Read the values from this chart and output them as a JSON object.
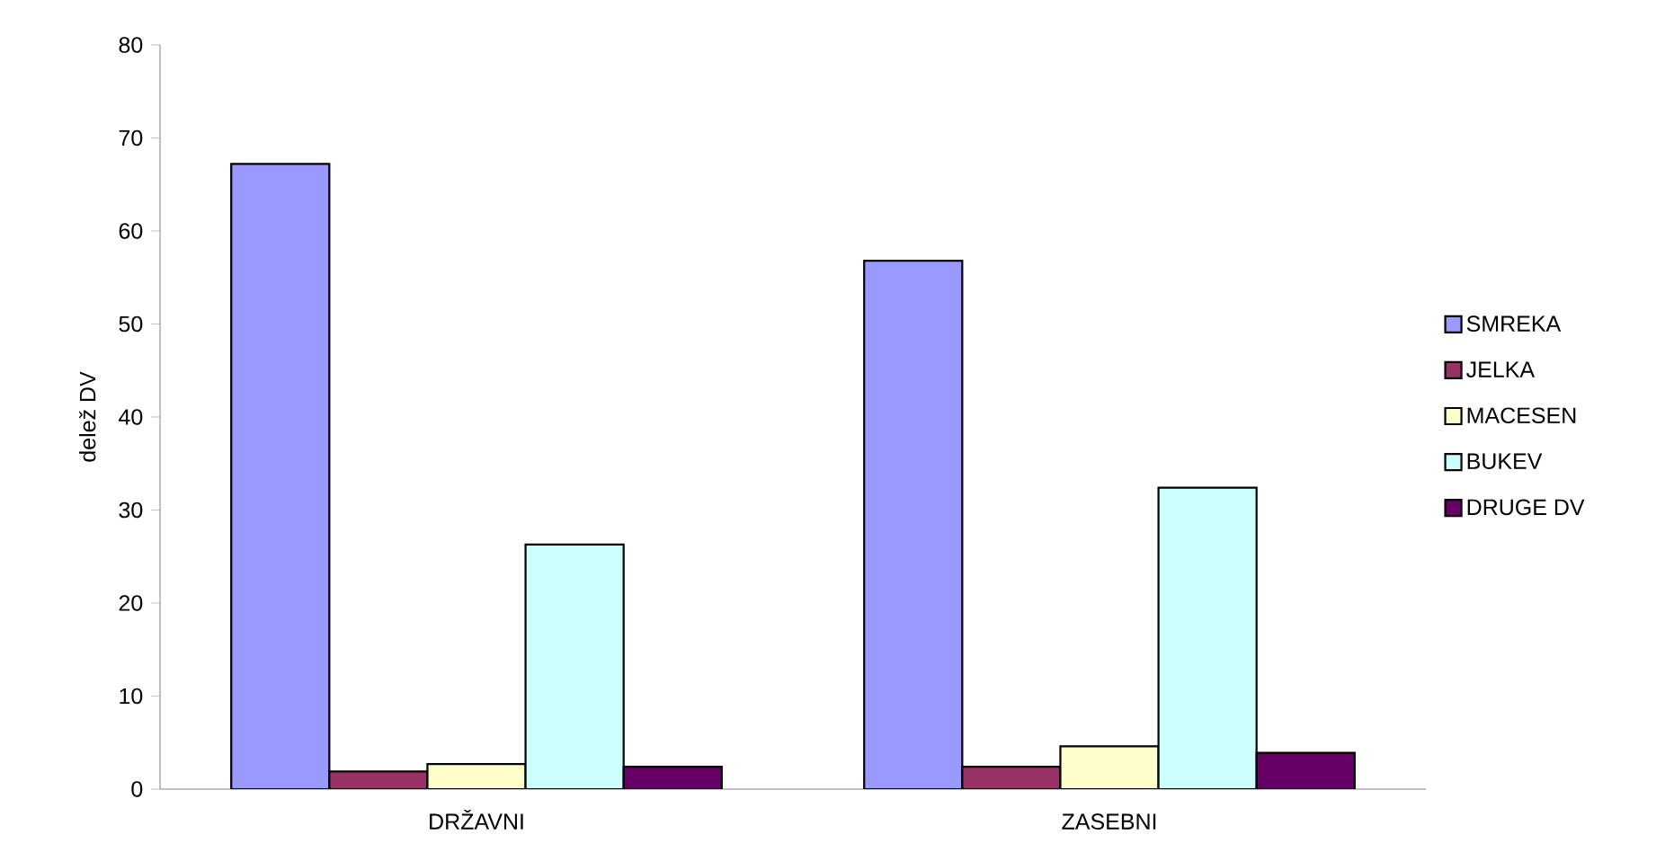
{
  "chart_data": {
    "type": "bar",
    "ylabel": "delež DV",
    "categories": [
      "DRŽAVNI",
      "ZASEBNI"
    ],
    "series": [
      {
        "name": "SMREKA",
        "color": "#9999ff",
        "values": [
          67.2,
          56.8
        ]
      },
      {
        "name": "JELKA",
        "color": "#993366",
        "values": [
          1.9,
          2.4
        ]
      },
      {
        "name": "MACESEN",
        "color": "#ffffcc",
        "values": [
          2.7,
          4.6
        ]
      },
      {
        "name": "BUKEV",
        "color": "#ccffff",
        "values": [
          26.3,
          32.4
        ]
      },
      {
        "name": "DRUGE DV",
        "color": "#660066",
        "values": [
          2.4,
          3.9
        ]
      }
    ],
    "ylim": [
      0,
      80
    ],
    "yticks": [
      0,
      10,
      20,
      30,
      40,
      50,
      60,
      70,
      80
    ],
    "legend": "right"
  }
}
